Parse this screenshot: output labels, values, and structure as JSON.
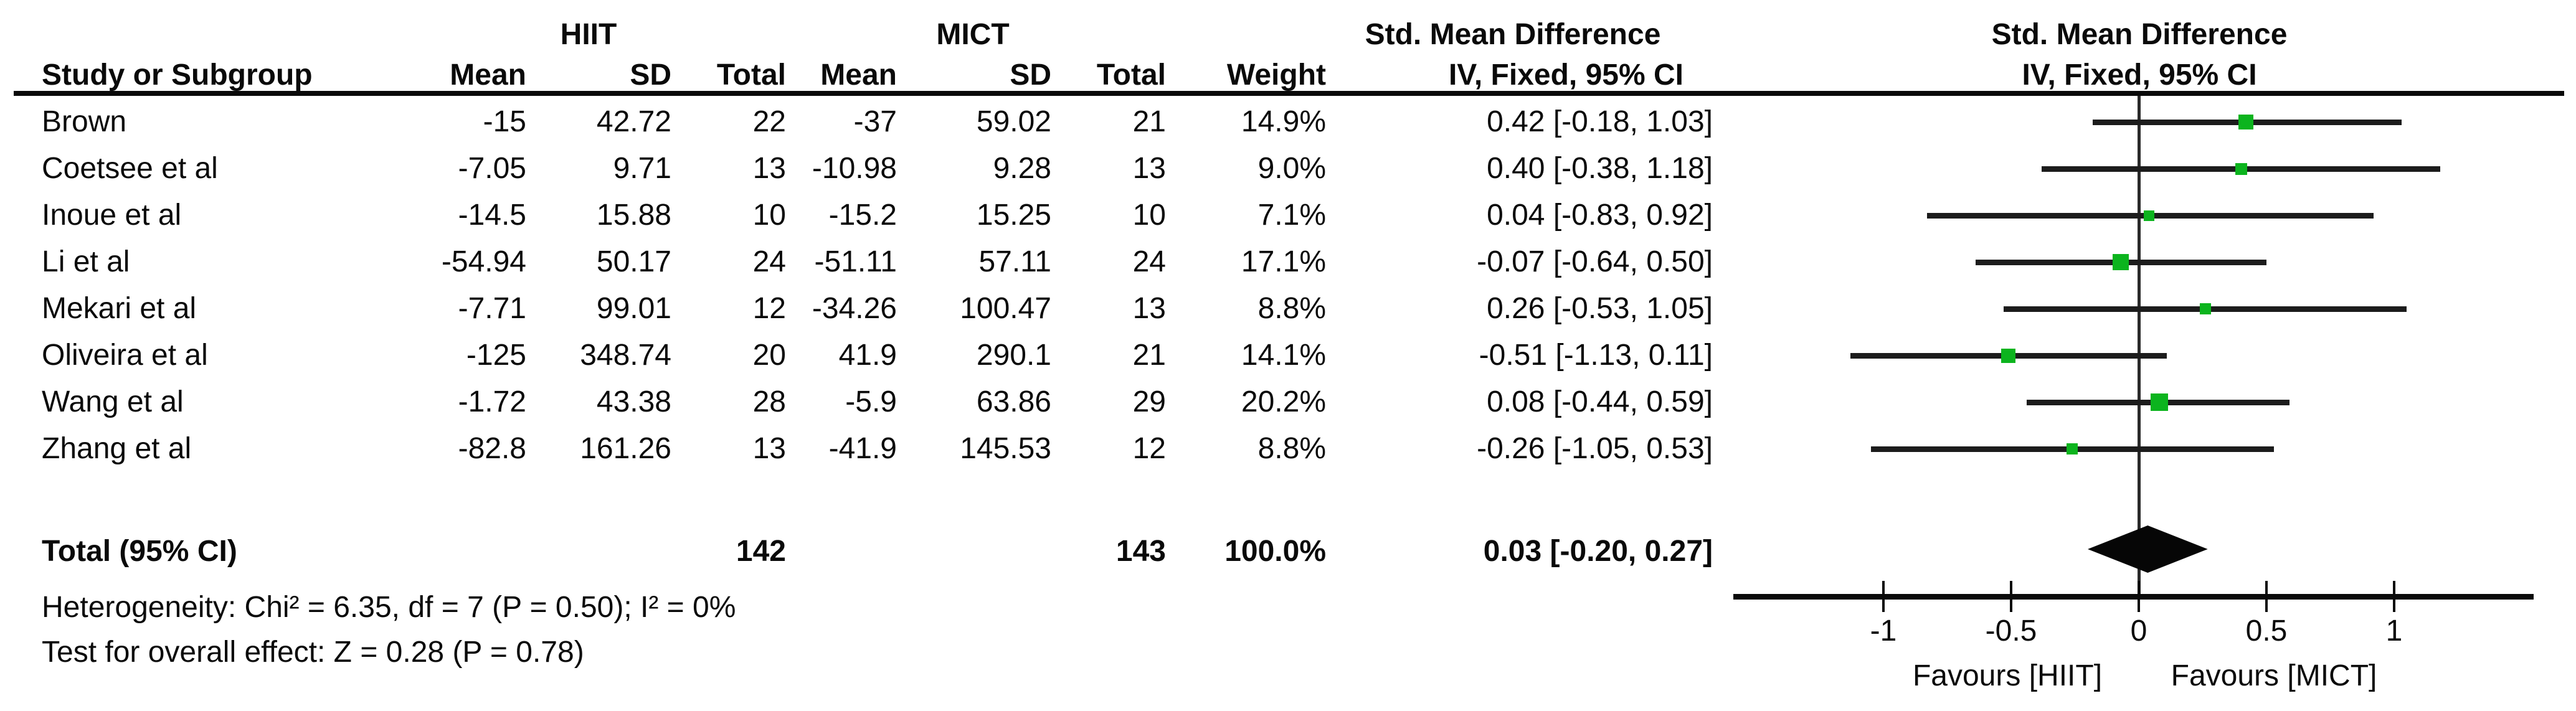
{
  "table": {
    "group_headers": {
      "hiit": "HIIT",
      "mict": "MICT",
      "smd": "Std. Mean Difference"
    },
    "col_headers": {
      "study": "Study or Subgroup",
      "mean": "Mean",
      "sd": "SD",
      "total": "Total",
      "weight": "Weight",
      "method": "IV, Fixed, 95% CI"
    },
    "studies": [
      {
        "name": "Brown",
        "hiit_mean": "-15",
        "hiit_sd": "42.72",
        "hiit_total": "22",
        "mict_mean": "-37",
        "mict_sd": "59.02",
        "mict_total": "21",
        "weight": "14.9%",
        "ci": "0.42 [-0.18, 1.03]"
      },
      {
        "name": "Coetsee et al",
        "hiit_mean": "-7.05",
        "hiit_sd": "9.71",
        "hiit_total": "13",
        "mict_mean": "-10.98",
        "mict_sd": "9.28",
        "mict_total": "13",
        "weight": "9.0%",
        "ci": "0.40 [-0.38, 1.18]"
      },
      {
        "name": "Inoue et al",
        "hiit_mean": "-14.5",
        "hiit_sd": "15.88",
        "hiit_total": "10",
        "mict_mean": "-15.2",
        "mict_sd": "15.25",
        "mict_total": "10",
        "weight": "7.1%",
        "ci": "0.04 [-0.83, 0.92]"
      },
      {
        "name": "Li et al",
        "hiit_mean": "-54.94",
        "hiit_sd": "50.17",
        "hiit_total": "24",
        "mict_mean": "-51.11",
        "mict_sd": "57.11",
        "mict_total": "24",
        "weight": "17.1%",
        "ci": "-0.07 [-0.64, 0.50]"
      },
      {
        "name": "Mekari et al",
        "hiit_mean": "-7.71",
        "hiit_sd": "99.01",
        "hiit_total": "12",
        "mict_mean": "-34.26",
        "mict_sd": "100.47",
        "mict_total": "13",
        "weight": "8.8%",
        "ci": "0.26 [-0.53, 1.05]"
      },
      {
        "name": "Oliveira et al",
        "hiit_mean": "-125",
        "hiit_sd": "348.74",
        "hiit_total": "20",
        "mict_mean": "41.9",
        "mict_sd": "290.1",
        "mict_total": "21",
        "weight": "14.1%",
        "ci": "-0.51 [-1.13, 0.11]"
      },
      {
        "name": "Wang et al",
        "hiit_mean": "-1.72",
        "hiit_sd": "43.38",
        "hiit_total": "28",
        "mict_mean": "-5.9",
        "mict_sd": "63.86",
        "mict_total": "29",
        "weight": "20.2%",
        "ci": "0.08 [-0.44, 0.59]"
      },
      {
        "name": "Zhang et al",
        "hiit_mean": "-82.8",
        "hiit_sd": "161.26",
        "hiit_total": "13",
        "mict_mean": "-41.9",
        "mict_sd": "145.53",
        "mict_total": "12",
        "weight": "8.8%",
        "ci": "-0.26 [-1.05, 0.53]"
      }
    ],
    "total": {
      "label": "Total (95% CI)",
      "hiit_total": "142",
      "mict_total": "143",
      "weight": "100.0%",
      "ci": "0.03 [-0.20, 0.27]"
    },
    "heterogeneity": "Heterogeneity: Chi² = 6.35, df = 7 (P = 0.50); I² = 0%",
    "overall_effect": "Test for overall effect: Z = 0.28 (P = 0.78)"
  },
  "plot": {
    "header1": "Std. Mean Difference",
    "header2": "IV, Fixed, 95% CI",
    "favours_left": "Favours [HIIT]",
    "favours_right": "Favours [MICT]",
    "marker_color": "#0cb41e",
    "line_color": "#1c1c1c",
    "diamond_color": "#060606"
  },
  "chart_data": {
    "type": "forest",
    "title": "Std. Mean Difference, IV, Fixed, 95% CI",
    "studies": [
      {
        "name": "Brown",
        "smd": 0.42,
        "ci_low": -0.18,
        "ci_high": 1.03,
        "weight": 14.9
      },
      {
        "name": "Coetsee et al",
        "smd": 0.4,
        "ci_low": -0.38,
        "ci_high": 1.18,
        "weight": 9.0
      },
      {
        "name": "Inoue et al",
        "smd": 0.04,
        "ci_low": -0.83,
        "ci_high": 0.92,
        "weight": 7.1
      },
      {
        "name": "Li et al",
        "smd": -0.07,
        "ci_low": -0.64,
        "ci_high": 0.5,
        "weight": 17.1
      },
      {
        "name": "Mekari et al",
        "smd": 0.26,
        "ci_low": -0.53,
        "ci_high": 1.05,
        "weight": 8.8
      },
      {
        "name": "Oliveira et al",
        "smd": -0.51,
        "ci_low": -1.13,
        "ci_high": 0.11,
        "weight": 14.1
      },
      {
        "name": "Wang et al",
        "smd": 0.08,
        "ci_low": -0.44,
        "ci_high": 0.59,
        "weight": 20.2
      },
      {
        "name": "Zhang et al",
        "smd": -0.26,
        "ci_low": -1.05,
        "ci_high": 0.53,
        "weight": 8.8
      }
    ],
    "total": {
      "smd": 0.03,
      "ci_low": -0.2,
      "ci_high": 0.27,
      "weight": 100.0
    },
    "x_ticks": [
      -1,
      -0.5,
      0,
      0.5,
      1
    ],
    "tick_labels": [
      "-1",
      "-0.5",
      "0",
      "0.5",
      "1"
    ],
    "xlim": [
      -1.6,
      1.6
    ],
    "annotations": [
      "Favours [HIIT]",
      "Favours [MICT]"
    ],
    "grid": false,
    "legend": false
  }
}
